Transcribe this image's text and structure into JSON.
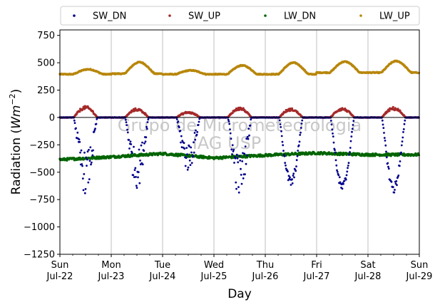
{
  "chart_data": {
    "type": "scatter",
    "xlabel": "Day",
    "ylabel": "Radiation",
    "ylabel_unit": "Wm",
    "ylabel_exp": "−2",
    "ylim": [
      -1250,
      800
    ],
    "yticks": [
      -1250,
      -1000,
      -750,
      -500,
      -250,
      0,
      250,
      500,
      750
    ],
    "ytick_labels": [
      "−1250",
      "−1000",
      "−750",
      "−500",
      "−250",
      "0",
      "250",
      "500",
      "750"
    ],
    "xlim": [
      "2018-07-22",
      "2018-07-29"
    ],
    "xticks": [
      {
        "day": "Sun",
        "date": "Jul-22"
      },
      {
        "day": "Mon",
        "date": "Jul-23"
      },
      {
        "day": "Tue",
        "date": "Jul-24"
      },
      {
        "day": "Wed",
        "date": "Jul-25"
      },
      {
        "day": "Thu",
        "date": "Jul-26"
      },
      {
        "day": "Fri",
        "date": "Jul-27"
      },
      {
        "day": "Sat",
        "date": "Jul-28"
      },
      {
        "day": "Sun",
        "date": "Jul-29"
      }
    ],
    "grid": "vertical",
    "zero_line": true,
    "legend_position": "top",
    "watermark": [
      "Grupo de Micrometeorologia",
      "IAG USP"
    ],
    "series": [
      {
        "name": "SW_DN",
        "color": "#00008b",
        "night_value": 0,
        "daily_min": [
          -700,
          -650,
          -500,
          -740,
          -640,
          -690,
          -700
        ]
      },
      {
        "name": "SW_UP",
        "color": "#a52a2a",
        "night_value": 0,
        "daily_max": [
          100,
          80,
          50,
          90,
          80,
          85,
          90
        ]
      },
      {
        "name": "LW_DN",
        "color": "#006400",
        "daily_level": [
          -385,
          -360,
          -330,
          -370,
          -345,
          -325,
          -340
        ]
      },
      {
        "name": "LW_UP",
        "color": "#b8860b",
        "night_level": [
          395,
          400,
          395,
          395,
          395,
          410,
          410
        ],
        "daily_peak": [
          440,
          505,
          430,
          475,
          500,
          510,
          515
        ]
      }
    ]
  }
}
